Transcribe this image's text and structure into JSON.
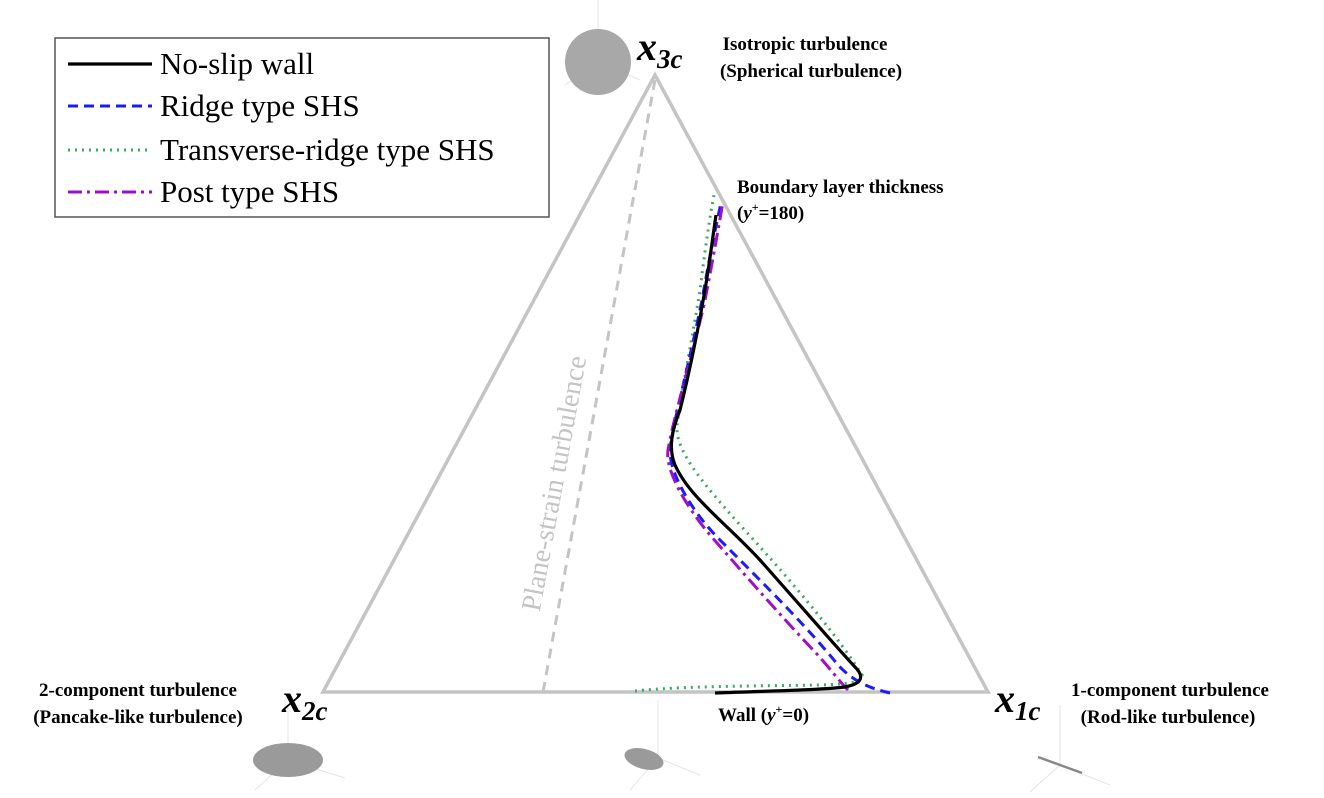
{
  "legend": [
    "No-slip wall",
    "Ridge type SHS",
    "Transverse-ridge type SHS",
    "Post type SHS"
  ],
  "vertices": {
    "top": {
      "symbol": "x",
      "subscript": "3c"
    },
    "left": {
      "symbol": "x",
      "subscript": "2c"
    },
    "right": {
      "symbol": "x",
      "subscript": "1c"
    }
  },
  "notes": {
    "isotropic": [
      "Isotropic turbulence",
      "(Spherical turbulence)"
    ],
    "two_component": [
      "2-component turbulence",
      "(Pancake-like turbulence)"
    ],
    "one_component": [
      "1-component turbulence",
      "(Rod-like turbulence)"
    ],
    "boundary": {
      "title": "Boundary layer thickness",
      "prefix": "(",
      "var": "y",
      "sup": "+",
      "suffix": "=180)"
    },
    "wall": {
      "prefix": "Wall (",
      "var": "y",
      "sup": "+",
      "suffix": "=0)"
    },
    "plane_strain": "Plane-strain turbulence"
  }
}
